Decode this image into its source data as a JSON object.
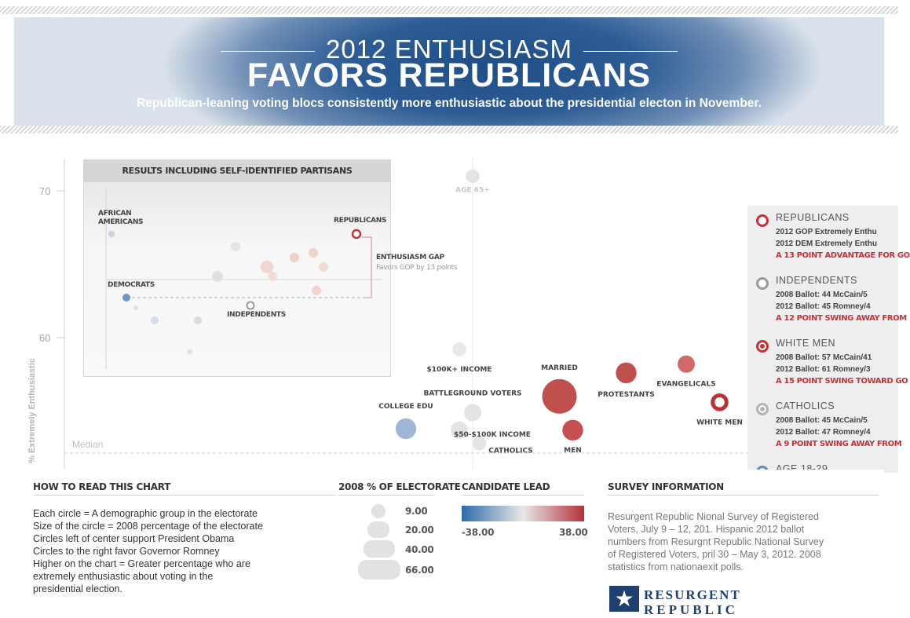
{
  "banner": {
    "title_top": "2012 ENTHUSIASM",
    "title_main": "FAVORS REPUBLICANS",
    "subtitle": "Republican-leaning voting blocs consistently more enthusiastic about the presidential electon in November."
  },
  "chart_data": {
    "type": "scatter",
    "ylabel": "% Extremely Enthusiastic",
    "yticks": [
      "70",
      "60"
    ],
    "median_label": "Median",
    "points": [
      {
        "label": "AGE 65+",
        "lead": 0,
        "y": 71,
        "size": 16,
        "color": "#e4e4e4"
      },
      {
        "label": "$100K+ INCOME",
        "lead": -2,
        "y": 59.2,
        "size": 16,
        "color": "#e9e9e9"
      },
      {
        "label": "MARRIED",
        "lead": 13,
        "y": 56,
        "size": 40,
        "color": "#c0504e"
      },
      {
        "label": "PROTESTANTS",
        "lead": 23,
        "y": 57.6,
        "size": 24,
        "color": "#c0504e"
      },
      {
        "label": "EVANGELICALS",
        "lead": 32,
        "y": 58.2,
        "size": 20,
        "color": "#d06a66"
      },
      {
        "label": "WHITE MEN",
        "lead": 37,
        "y": 55.6,
        "size": 16,
        "color": "#c02f36"
      },
      {
        "label": "BATTLEGROUND VOTERS",
        "lead": 0,
        "y": 54.9,
        "size": 20,
        "color": "#e4e4e4"
      },
      {
        "label": "COLLEGE EDU",
        "lead": -10,
        "y": 53.8,
        "size": 24,
        "color": "#9fb6d6"
      },
      {
        "label": "$50-$100K INCOME",
        "lead": -2,
        "y": 53.7,
        "size": 20,
        "color": "#e4e4e4"
      },
      {
        "label": "MEN",
        "lead": 15,
        "y": 53.7,
        "size": 24,
        "color": "#c7504f"
      },
      {
        "label": "CATHOLICS",
        "lead": 1,
        "y": 52.8,
        "size": 16,
        "color": "#e4e4e4"
      }
    ],
    "inset": {
      "title": "RESULTS INCLUDING SELF-IDENTIFIED PARTISANS",
      "labels": {
        "african_americans": "AFRICAN AMERICANS",
        "republicans": "REPUBLICANS",
        "democrats": "DEMOCRATS",
        "independents": "INDEPENDENTS",
        "gap_title": "ENTHUSIASM GAP",
        "gap_note": "Favors GOP by 13 points"
      }
    }
  },
  "legend": {
    "items": [
      {
        "title": "REPUBLICANS",
        "line1": "2012 GOP Extremely Enthu",
        "line2": "2012 DEM Extremely Enthu",
        "note": "A 13 POINT ADVANTAGE FOR GO",
        "ring": "#c0343a",
        "fill": "#ffffff"
      },
      {
        "title": "INDEPENDENTS",
        "line1": "2008 Ballot: 44 McCain/5",
        "line2": "2012 Ballot: 45 Romney/4",
        "note": "A 12 POINT SWING AWAY FROM",
        "ring": "#9a9a9a",
        "fill": "#ffffff"
      },
      {
        "title": "WHITE MEN",
        "line1": "2008 Ballot: 57 McCain/41",
        "line2": "2012 Ballot: 61 Romney/3",
        "note": "A 15 POINT SWING TOWARD GO",
        "ring": "#c0343a",
        "fill": "#c0343a"
      },
      {
        "title": "CATHOLICS",
        "line1": "2008 Ballot: 45 McCain/5",
        "line2": "2012 Ballot: 47 Romney/4",
        "note": "A 9 POINT SWING AWAY FROM",
        "ring": "#b5b5b5",
        "fill": "#b5b5b5"
      },
      {
        "title": "AGE 18-29",
        "line1": "",
        "line2": "",
        "note": "",
        "ring": "#5b8bc6",
        "fill": "#5b8bc6"
      }
    ]
  },
  "how_to": {
    "title": "HOW TO READ THIS CHART",
    "lines": [
      "Each circle = A demographic group in the electorate",
      "Size of the circle = 2008 percentage of the electorate",
      "Circles left of center support President Obama",
      "Circles to the right favor Governor Romney",
      "Higher on the chart = Greater percentage who are",
      "extremely enthusiastic about voting in the",
      "presidential election."
    ]
  },
  "size_key": {
    "title": "2008 % OF ELECTORATE",
    "values": [
      "9.00",
      "20.00",
      "40.00",
      "66.00"
    ]
  },
  "lead_key": {
    "title": "CANDIDATE LEAD",
    "min": "-38.00",
    "max": "38.00",
    "color_min": "#2f6aa8",
    "color_mid": "#e8e8e8",
    "color_max": "#b3323a"
  },
  "survey": {
    "title": "SURVEY INFORMATION",
    "lines": [
      "Resurgent Republic Nional Survey of Registered",
      "Voters, July 9 – 12, 201. Hispanic 2012 ballot",
      "numbers from Resurgnt Republic National Survey",
      "of Registered Voters, pril 30 – May 3, 2012. 2008",
      "statistics from nationaexit polls."
    ],
    "logo_line1": "RESURGENT",
    "logo_line2": "REPUBLIC"
  }
}
